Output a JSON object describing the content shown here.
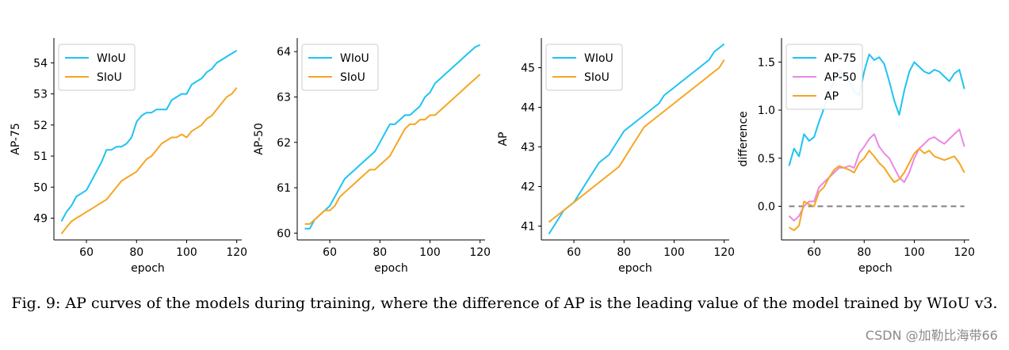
{
  "caption": "Fig. 9: AP curves of the models during training, where the difference of AP is the leading value of the model trained by WIoU v3.",
  "watermark": "CSDN @加勒比海带66",
  "colors": {
    "wiou": "#1ec3f3",
    "siou": "#f5a623",
    "ap50": "#ea88e5",
    "zero": "#808080"
  },
  "chart_data": [
    {
      "type": "line",
      "xlabel": "epoch",
      "ylabel": "AP-75",
      "xlim": [
        47,
        122
      ],
      "ylim": [
        48.3,
        54.8
      ],
      "xticks": [
        60,
        80,
        100,
        120
      ],
      "yticks": [
        49,
        50,
        51,
        52,
        53,
        54
      ],
      "legend": "top-left",
      "series": [
        {
          "name": "WIoU",
          "color": "#1ec3f3",
          "x": [
            50,
            52,
            54,
            56,
            58,
            60,
            62,
            64,
            66,
            68,
            70,
            72,
            74,
            76,
            78,
            80,
            82,
            84,
            86,
            88,
            90,
            92,
            94,
            96,
            98,
            100,
            102,
            104,
            106,
            108,
            110,
            112,
            114,
            116,
            118,
            120
          ],
          "values": [
            48.9,
            49.2,
            49.4,
            49.7,
            49.8,
            49.9,
            50.2,
            50.5,
            50.8,
            51.2,
            51.2,
            51.3,
            51.3,
            51.4,
            51.6,
            52.1,
            52.3,
            52.4,
            52.4,
            52.5,
            52.5,
            52.5,
            52.8,
            52.9,
            53.0,
            53.0,
            53.3,
            53.4,
            53.5,
            53.7,
            53.8,
            54.0,
            54.1,
            54.2,
            54.3,
            54.4
          ]
        },
        {
          "name": "SIoU",
          "color": "#f5a623",
          "x": [
            50,
            52,
            54,
            56,
            58,
            60,
            62,
            64,
            66,
            68,
            70,
            72,
            74,
            76,
            78,
            80,
            82,
            84,
            86,
            88,
            90,
            92,
            94,
            96,
            98,
            100,
            102,
            104,
            106,
            108,
            110,
            112,
            114,
            116,
            118,
            120
          ],
          "values": [
            48.5,
            48.7,
            48.9,
            49.0,
            49.1,
            49.2,
            49.3,
            49.4,
            49.5,
            49.6,
            49.8,
            50.0,
            50.2,
            50.3,
            50.4,
            50.5,
            50.7,
            50.9,
            51.0,
            51.2,
            51.4,
            51.5,
            51.6,
            51.6,
            51.7,
            51.6,
            51.8,
            51.9,
            52.0,
            52.2,
            52.3,
            52.5,
            52.7,
            52.9,
            53.0,
            53.2
          ]
        }
      ]
    },
    {
      "type": "line",
      "xlabel": "epoch",
      "ylabel": "AP-50",
      "xlim": [
        47,
        122
      ],
      "ylim": [
        59.85,
        64.3
      ],
      "xticks": [
        60,
        80,
        100,
        120
      ],
      "yticks": [
        60,
        61,
        62,
        63,
        64
      ],
      "legend": "top-left",
      "series": [
        {
          "name": "WIoU",
          "color": "#1ec3f3",
          "x": [
            50,
            52,
            54,
            56,
            58,
            60,
            62,
            64,
            66,
            68,
            70,
            72,
            74,
            76,
            78,
            80,
            82,
            84,
            86,
            88,
            90,
            92,
            94,
            96,
            98,
            100,
            102,
            104,
            106,
            108,
            110,
            112,
            114,
            116,
            118,
            120
          ],
          "values": [
            60.1,
            60.1,
            60.3,
            60.4,
            60.5,
            60.6,
            60.8,
            61.0,
            61.2,
            61.3,
            61.4,
            61.5,
            61.6,
            61.7,
            61.8,
            62.0,
            62.2,
            62.4,
            62.4,
            62.5,
            62.6,
            62.6,
            62.7,
            62.8,
            63.0,
            63.1,
            63.3,
            63.4,
            63.5,
            63.6,
            63.7,
            63.8,
            63.9,
            64.0,
            64.1,
            64.15
          ]
        },
        {
          "name": "SIoU",
          "color": "#f5a623",
          "x": [
            50,
            52,
            54,
            56,
            58,
            60,
            62,
            64,
            66,
            68,
            70,
            72,
            74,
            76,
            78,
            80,
            82,
            84,
            86,
            88,
            90,
            92,
            94,
            96,
            98,
            100,
            102,
            104,
            106,
            108,
            110,
            112,
            114,
            116,
            118,
            120
          ],
          "values": [
            60.2,
            60.2,
            60.3,
            60.4,
            60.5,
            60.5,
            60.6,
            60.8,
            60.9,
            61.0,
            61.1,
            61.2,
            61.3,
            61.4,
            61.4,
            61.5,
            61.6,
            61.7,
            61.9,
            62.1,
            62.3,
            62.4,
            62.4,
            62.5,
            62.5,
            62.6,
            62.6,
            62.7,
            62.8,
            62.9,
            63.0,
            63.1,
            63.2,
            63.3,
            63.4,
            63.5
          ]
        }
      ]
    },
    {
      "type": "line",
      "xlabel": "epoch",
      "ylabel": "AP",
      "xlim": [
        47,
        122
      ],
      "ylim": [
        40.65,
        45.75
      ],
      "xticks": [
        60,
        80,
        100,
        120
      ],
      "yticks": [
        41,
        42,
        43,
        44,
        45
      ],
      "legend": "top-left",
      "series": [
        {
          "name": "WIoU",
          "color": "#1ec3f3",
          "x": [
            50,
            52,
            54,
            56,
            58,
            60,
            62,
            64,
            66,
            68,
            70,
            72,
            74,
            76,
            78,
            80,
            82,
            84,
            86,
            88,
            90,
            92,
            94,
            96,
            98,
            100,
            102,
            104,
            106,
            108,
            110,
            112,
            114,
            116,
            118,
            120
          ],
          "values": [
            40.8,
            41.0,
            41.2,
            41.4,
            41.5,
            41.6,
            41.8,
            42.0,
            42.2,
            42.4,
            42.6,
            42.7,
            42.8,
            43.0,
            43.2,
            43.4,
            43.5,
            43.6,
            43.7,
            43.8,
            43.9,
            44.0,
            44.1,
            44.3,
            44.4,
            44.5,
            44.6,
            44.7,
            44.8,
            44.9,
            45.0,
            45.1,
            45.2,
            45.4,
            45.5,
            45.6
          ]
        },
        {
          "name": "SIoU",
          "color": "#f5a623",
          "x": [
            50,
            52,
            54,
            56,
            58,
            60,
            62,
            64,
            66,
            68,
            70,
            72,
            74,
            76,
            78,
            80,
            82,
            84,
            86,
            88,
            90,
            92,
            94,
            96,
            98,
            100,
            102,
            104,
            106,
            108,
            110,
            112,
            114,
            116,
            118,
            120
          ],
          "values": [
            41.1,
            41.2,
            41.3,
            41.4,
            41.5,
            41.6,
            41.7,
            41.8,
            41.9,
            42.0,
            42.1,
            42.2,
            42.3,
            42.4,
            42.5,
            42.7,
            42.9,
            43.1,
            43.3,
            43.5,
            43.6,
            43.7,
            43.8,
            43.9,
            44.0,
            44.1,
            44.2,
            44.3,
            44.4,
            44.5,
            44.6,
            44.7,
            44.8,
            44.9,
            45.0,
            45.2
          ]
        }
      ]
    },
    {
      "type": "line",
      "xlabel": "epoch",
      "ylabel": "difference",
      "xlim": [
        47,
        122
      ],
      "ylim": [
        -0.35,
        1.75
      ],
      "xticks": [
        60,
        80,
        100,
        120
      ],
      "yticks": [
        0.0,
        0.5,
        1.0,
        1.5
      ],
      "yticklabels": [
        "0.0",
        "0.5",
        "1.0",
        "1.5"
      ],
      "legend": "top-left",
      "reference_line": {
        "y": 0,
        "color": "#808080",
        "style": "dashed"
      },
      "series": [
        {
          "name": "AP-75",
          "color": "#1ec3f3",
          "x": [
            50,
            52,
            54,
            56,
            58,
            60,
            62,
            64,
            66,
            68,
            70,
            72,
            74,
            76,
            78,
            80,
            82,
            84,
            86,
            88,
            90,
            92,
            94,
            96,
            98,
            100,
            102,
            104,
            106,
            108,
            110,
            112,
            114,
            116,
            118,
            120
          ],
          "values": [
            0.42,
            0.6,
            0.52,
            0.75,
            0.68,
            0.72,
            0.88,
            1.02,
            1.18,
            1.3,
            1.42,
            1.35,
            1.3,
            1.2,
            1.15,
            1.4,
            1.58,
            1.52,
            1.55,
            1.48,
            1.3,
            1.1,
            0.95,
            1.2,
            1.4,
            1.5,
            1.45,
            1.4,
            1.38,
            1.42,
            1.4,
            1.35,
            1.3,
            1.38,
            1.42,
            1.22
          ]
        },
        {
          "name": "AP-50",
          "color": "#ea88e5",
          "x": [
            50,
            52,
            54,
            56,
            58,
            60,
            62,
            64,
            66,
            68,
            70,
            72,
            74,
            76,
            78,
            80,
            82,
            84,
            86,
            88,
            90,
            92,
            94,
            96,
            98,
            100,
            102,
            104,
            106,
            108,
            110,
            112,
            114,
            116,
            118,
            120
          ],
          "values": [
            -0.1,
            -0.15,
            -0.1,
            0.0,
            0.05,
            0.05,
            0.2,
            0.25,
            0.3,
            0.35,
            0.4,
            0.4,
            0.42,
            0.4,
            0.55,
            0.62,
            0.7,
            0.75,
            0.62,
            0.55,
            0.5,
            0.4,
            0.3,
            0.25,
            0.35,
            0.5,
            0.6,
            0.65,
            0.7,
            0.72,
            0.68,
            0.65,
            0.7,
            0.75,
            0.8,
            0.62
          ]
        },
        {
          "name": "AP",
          "color": "#f5a623",
          "x": [
            50,
            52,
            54,
            56,
            58,
            60,
            62,
            64,
            66,
            68,
            70,
            72,
            74,
            76,
            78,
            80,
            82,
            84,
            86,
            88,
            90,
            92,
            94,
            96,
            98,
            100,
            102,
            104,
            106,
            108,
            110,
            112,
            114,
            116,
            118,
            120
          ],
          "values": [
            -0.22,
            -0.25,
            -0.2,
            0.05,
            0.02,
            0.0,
            0.15,
            0.2,
            0.3,
            0.38,
            0.42,
            0.4,
            0.38,
            0.35,
            0.45,
            0.5,
            0.58,
            0.52,
            0.45,
            0.4,
            0.32,
            0.25,
            0.28,
            0.35,
            0.45,
            0.55,
            0.6,
            0.55,
            0.58,
            0.52,
            0.5,
            0.48,
            0.5,
            0.52,
            0.45,
            0.35
          ]
        }
      ]
    }
  ]
}
